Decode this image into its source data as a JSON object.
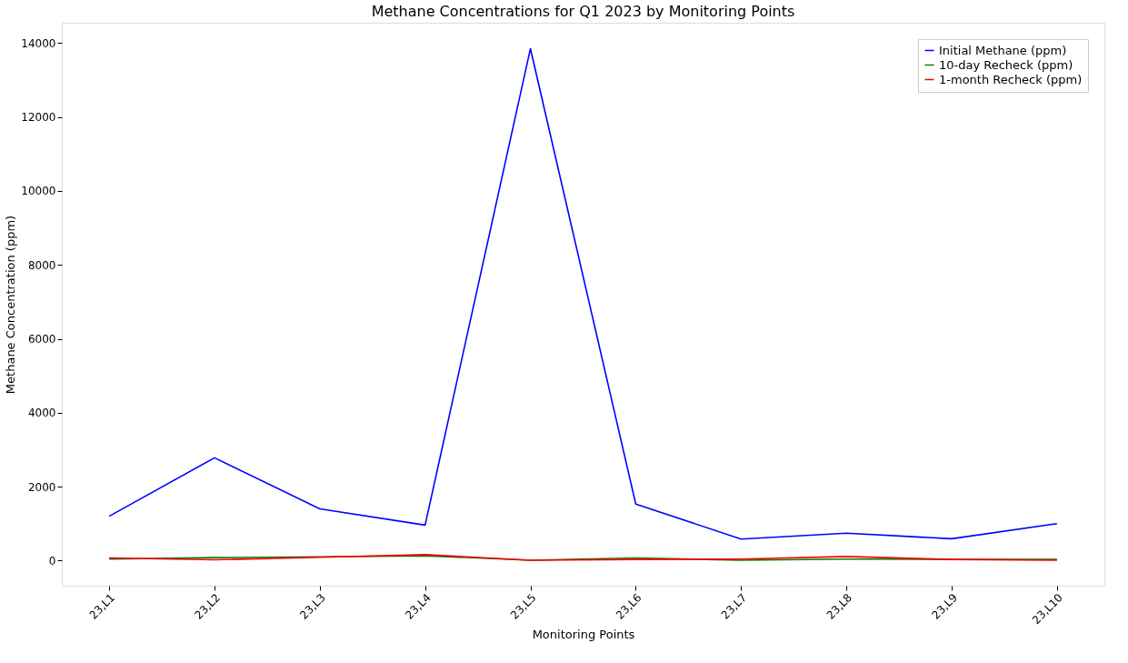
{
  "chart_data": {
    "type": "line",
    "title": "Methane Concentrations for Q1 2023 by Monitoring Points",
    "xlabel": "Monitoring Points",
    "ylabel": "Methane Concentration (ppm)",
    "categories": [
      "23,L1",
      "23,L2",
      "23,L3",
      "23,L4",
      "23,L5",
      "23,L6",
      "23,L7",
      "23,L8",
      "23,L9",
      "23,L10"
    ],
    "series": [
      {
        "name": "Initial Methane (ppm)",
        "color": "#0000ff",
        "values": [
          1200,
          2780,
          1400,
          960,
          13850,
          1530,
          580,
          740,
          590,
          1000
        ]
      },
      {
        "name": "10-day Recheck (ppm)",
        "color": "#008000",
        "values": [
          40,
          80,
          100,
          130,
          10,
          70,
          10,
          40,
          30,
          30
        ]
      },
      {
        "name": "1-month Recheck (ppm)",
        "color": "#ff0000",
        "values": [
          70,
          20,
          90,
          160,
          10,
          30,
          40,
          110,
          30,
          10
        ]
      }
    ],
    "ylim": [
      -680,
      14550
    ],
    "yticks": [
      0,
      2000,
      4000,
      6000,
      8000,
      10000,
      12000,
      14000
    ],
    "grid": false,
    "legend": "top right",
    "marker": "none",
    "line_style": "solid"
  }
}
